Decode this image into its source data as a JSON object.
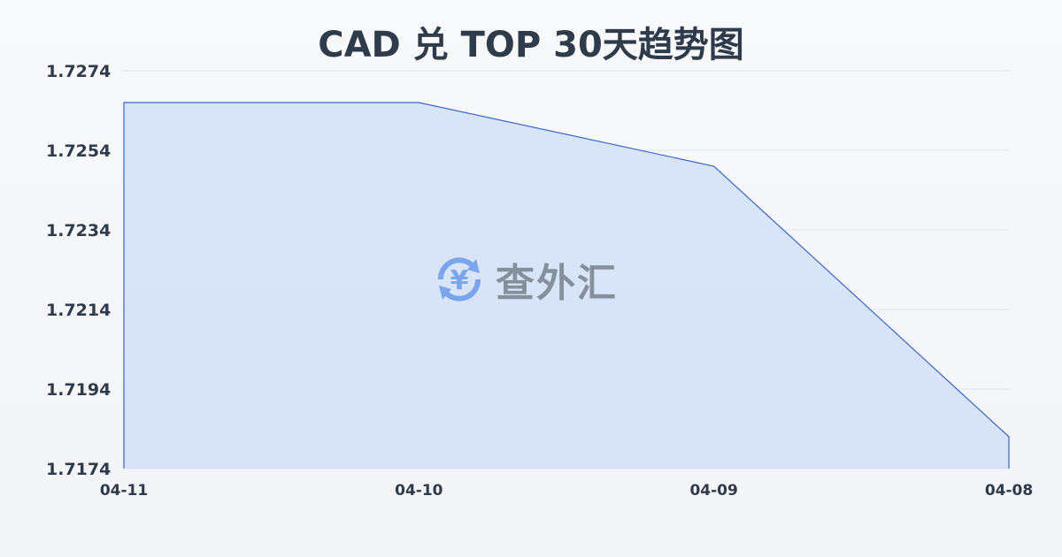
{
  "chart_data": {
    "type": "area",
    "title": "CAD 兑 TOP 30天趋势图",
    "categories": [
      "04-11",
      "04-10",
      "04-09",
      "04-08"
    ],
    "series": [
      {
        "values": [
          1.7266,
          1.7266,
          1.725,
          1.7182
        ]
      }
    ],
    "yticks": [
      "1.7274",
      "1.7254",
      "1.7234",
      "1.7214",
      "1.7194",
      "1.7174"
    ],
    "ylim": [
      1.7174,
      1.7274
    ],
    "grid": true,
    "line_color": "#3a66c8",
    "fill_color": "#d5e1f6"
  },
  "watermark": {
    "text": "查外汇",
    "icon": "yen-exchange-icon"
  }
}
